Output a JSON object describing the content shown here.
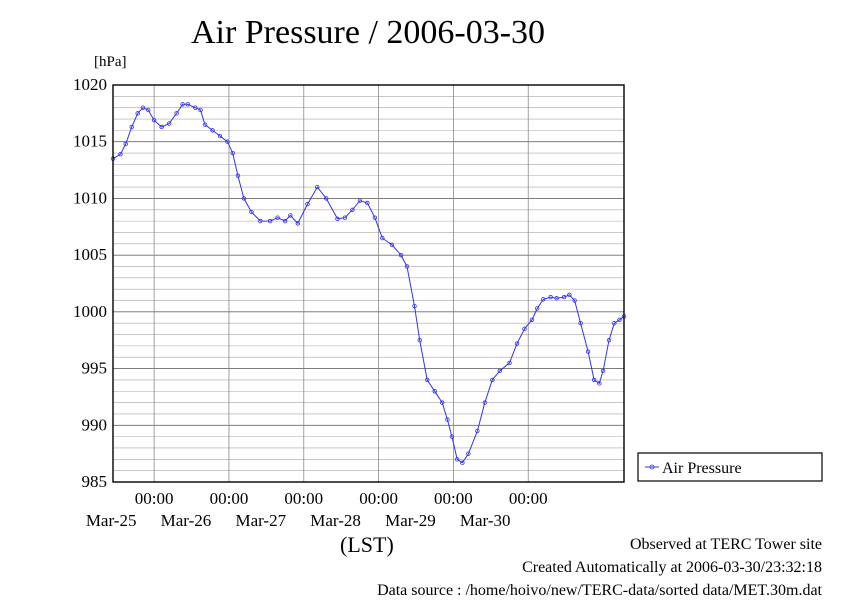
{
  "chart_data": {
    "type": "line",
    "title": "Air Pressure / 2006-03-30",
    "ylabel": "[hPa]",
    "xlabel": "(LST)",
    "ylim": [
      985,
      1020
    ],
    "y_ticks": [
      985,
      990,
      995,
      1000,
      1005,
      1010,
      1015,
      1020
    ],
    "x_range_days": [
      -0.55,
      5.45
    ],
    "x_ticks": [
      {
        "pos": 0,
        "time": "00:00",
        "date": "Mar-25"
      },
      {
        "pos": 1,
        "time": "00:00",
        "date": "Mar-26"
      },
      {
        "pos": 2,
        "time": "00:00",
        "date": "Mar-27"
      },
      {
        "pos": 3,
        "time": "00:00",
        "date": "Mar-28"
      },
      {
        "pos": 4,
        "time": "00:00",
        "date": "Mar-29"
      },
      {
        "pos": 5,
        "time": "00:00",
        "date": "Mar-30"
      }
    ],
    "grid": true,
    "legend_position": "right",
    "series": [
      {
        "name": "Air Pressure",
        "color": "#3333ee",
        "points": [
          [
            -0.55,
            1013.5
          ],
          [
            -0.45,
            1013.9
          ],
          [
            -0.38,
            1014.8
          ],
          [
            -0.3,
            1016.3
          ],
          [
            -0.22,
            1017.5
          ],
          [
            -0.15,
            1018.0
          ],
          [
            -0.08,
            1017.8
          ],
          [
            0.0,
            1016.9
          ],
          [
            0.1,
            1016.3
          ],
          [
            0.2,
            1016.6
          ],
          [
            0.3,
            1017.5
          ],
          [
            0.38,
            1018.3
          ],
          [
            0.45,
            1018.3
          ],
          [
            0.55,
            1018.0
          ],
          [
            0.62,
            1017.8
          ],
          [
            0.68,
            1016.5
          ],
          [
            0.78,
            1016.0
          ],
          [
            0.88,
            1015.5
          ],
          [
            0.98,
            1015.0
          ],
          [
            1.05,
            1014.0
          ],
          [
            1.12,
            1012.0
          ],
          [
            1.2,
            1010.0
          ],
          [
            1.3,
            1008.8
          ],
          [
            1.42,
            1008.0
          ],
          [
            1.55,
            1008.0
          ],
          [
            1.65,
            1008.3
          ],
          [
            1.75,
            1008.0
          ],
          [
            1.82,
            1008.5
          ],
          [
            1.92,
            1007.8
          ],
          [
            2.05,
            1009.5
          ],
          [
            2.18,
            1011.0
          ],
          [
            2.3,
            1010.0
          ],
          [
            2.45,
            1008.2
          ],
          [
            2.55,
            1008.3
          ],
          [
            2.65,
            1009.0
          ],
          [
            2.75,
            1009.8
          ],
          [
            2.85,
            1009.6
          ],
          [
            2.95,
            1008.3
          ],
          [
            3.05,
            1006.5
          ],
          [
            3.18,
            1005.9
          ],
          [
            3.3,
            1005.0
          ],
          [
            3.38,
            1004.0
          ],
          [
            3.48,
            1000.5
          ],
          [
            3.55,
            997.5
          ],
          [
            3.65,
            994.0
          ],
          [
            3.75,
            993.0
          ],
          [
            3.85,
            992.0
          ],
          [
            3.92,
            990.5
          ],
          [
            3.98,
            989.0
          ],
          [
            4.05,
            987.0
          ],
          [
            4.12,
            986.7
          ],
          [
            4.2,
            987.5
          ],
          [
            4.32,
            989.5
          ],
          [
            4.42,
            992.0
          ],
          [
            4.52,
            994.0
          ],
          [
            4.62,
            994.8
          ],
          [
            4.75,
            995.5
          ],
          [
            4.85,
            997.2
          ],
          [
            4.95,
            998.5
          ],
          [
            5.05,
            999.3
          ],
          [
            5.12,
            1000.3
          ],
          [
            5.2,
            1001.1
          ],
          [
            5.3,
            1001.3
          ],
          [
            5.38,
            1001.2
          ],
          [
            5.48,
            1001.3
          ],
          [
            5.55,
            1001.5
          ],
          [
            5.62,
            1001.0
          ],
          [
            5.7,
            999.0
          ],
          [
            5.8,
            996.5
          ],
          [
            5.88,
            994.0
          ],
          [
            5.95,
            993.7
          ],
          [
            6.0,
            994.8
          ],
          [
            6.08,
            997.5
          ],
          [
            6.15,
            999.0
          ],
          [
            6.22,
            999.3
          ],
          [
            6.28,
            999.6
          ]
        ]
      }
    ]
  },
  "footer": {
    "observed": "Observed at TERC Tower site",
    "created": "Created Automatically at 2006-03-30/23:32:18",
    "source": "Data source : /home/hoivo/new/TERC-data/sorted data/MET.30m.dat"
  }
}
